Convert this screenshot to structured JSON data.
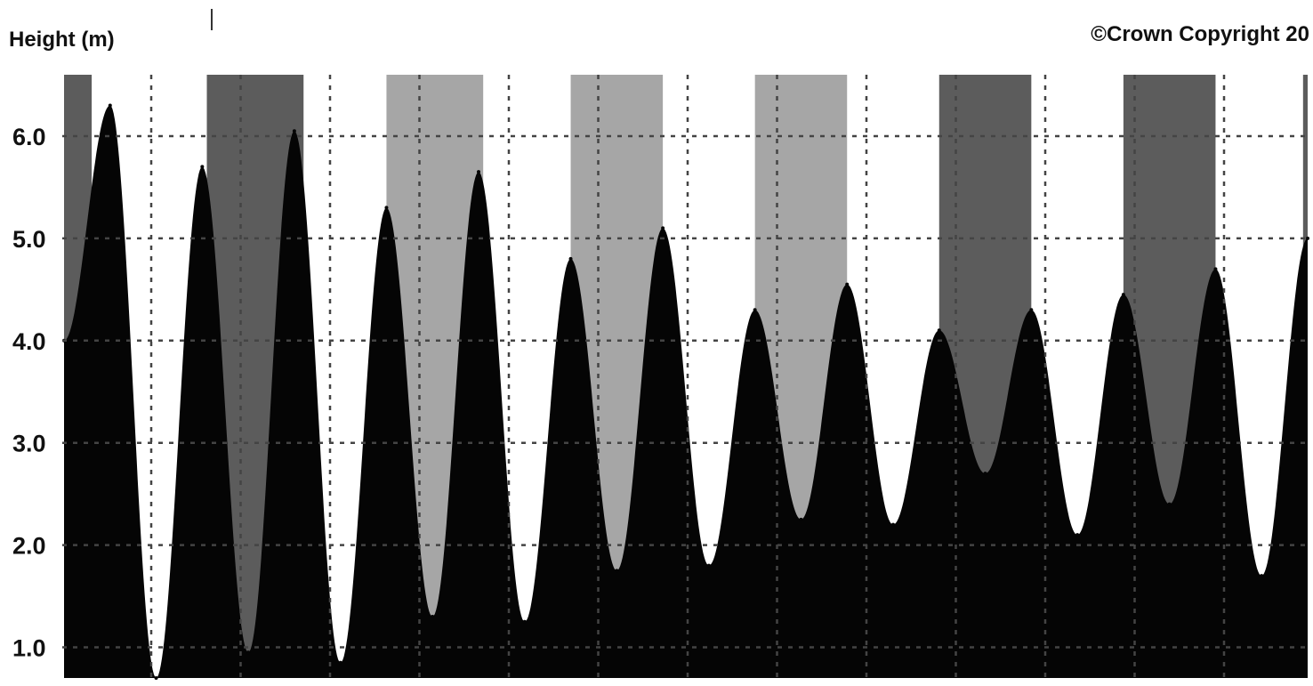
{
  "header": {
    "ylabel": "Height (m)",
    "copyright": "©Crown Copyright 20"
  },
  "colors": {
    "tide": "#050505",
    "night": "#5c5c5c",
    "twilight": "#a6a6a6",
    "grid": "#444444",
    "background": "#ffffff"
  },
  "chart_data": {
    "type": "area",
    "title": "",
    "xlabel": "",
    "ylabel": "Height (m)",
    "ylim": [
      0.7,
      6.6
    ],
    "yticks": [
      "1.0",
      "2.0",
      "3.0",
      "4.0",
      "5.0",
      "6.0"
    ],
    "ytick_values": [
      1.0,
      2.0,
      3.0,
      4.0,
      5.0,
      6.0
    ],
    "grid": true,
    "x_unit": "relative tide cycle position",
    "series": [
      {
        "values": [
          {
            "x": 0,
            "y": 4.0
          },
          {
            "x": 1,
            "y": 6.3
          },
          {
            "x": 2,
            "y": 0.7
          },
          {
            "x": 3,
            "y": 5.7
          },
          {
            "x": 4,
            "y": 0.95
          },
          {
            "x": 5,
            "y": 6.05
          },
          {
            "x": 6,
            "y": 0.85
          },
          {
            "x": 7,
            "y": 5.3
          },
          {
            "x": 8,
            "y": 1.3
          },
          {
            "x": 9,
            "y": 5.65
          },
          {
            "x": 10,
            "y": 1.25
          },
          {
            "x": 11,
            "y": 4.8
          },
          {
            "x": 12,
            "y": 1.75
          },
          {
            "x": 13,
            "y": 5.1
          },
          {
            "x": 14,
            "y": 1.8
          },
          {
            "x": 15,
            "y": 4.3
          },
          {
            "x": 16,
            "y": 2.25
          },
          {
            "x": 17,
            "y": 4.55
          },
          {
            "x": 18,
            "y": 2.2
          },
          {
            "x": 19,
            "y": 4.1
          },
          {
            "x": 20,
            "y": 2.7
          },
          {
            "x": 21,
            "y": 4.3
          },
          {
            "x": 22,
            "y": 2.1
          },
          {
            "x": 23,
            "y": 4.45
          },
          {
            "x": 24,
            "y": 2.4
          },
          {
            "x": 25,
            "y": 4.7
          },
          {
            "x": 26,
            "y": 1.7
          },
          {
            "x": 27,
            "y": 5.0
          }
        ]
      }
    ],
    "shaded_bands": [
      {
        "shade": "night",
        "x_start": 0,
        "x_end": 0.6
      },
      {
        "shade": "night",
        "x_start": 3.1,
        "x_end": 5.2
      },
      {
        "shade": "twilight",
        "x_start": 7.0,
        "x_end": 9.1
      },
      {
        "shade": "twilight",
        "x_start": 11.0,
        "x_end": 13.0
      },
      {
        "shade": "twilight",
        "x_start": 15.0,
        "x_end": 17.0
      },
      {
        "shade": "night",
        "x_start": 19.0,
        "x_end": 21.0
      },
      {
        "shade": "night",
        "x_start": 23.0,
        "x_end": 25.0
      },
      {
        "shade": "night",
        "x_start": 26.9,
        "x_end": 27.0
      }
    ]
  }
}
